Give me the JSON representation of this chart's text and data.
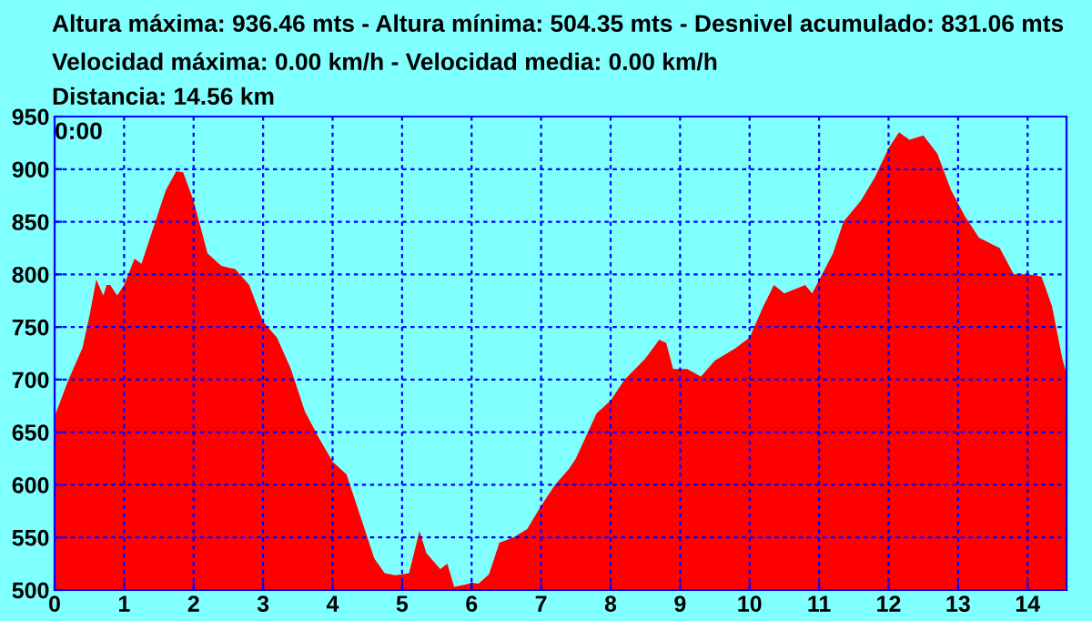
{
  "chart_data": {
    "type": "area",
    "title": "Altura máxima: 936.46 mts - Altura mínima: 504.35 mts - Desnivel acumulado: 831.06 mts",
    "annotations": [
      "Velocidad máxima: 0.00 km/h - Velocidad media: 0.00 km/h",
      "Distancia: 14.56 km",
      "0:00"
    ],
    "x": [
      0,
      0.2,
      0.4,
      0.5,
      0.6,
      0.7,
      0.75,
      0.8,
      0.9,
      1.0,
      1.15,
      1.25,
      1.4,
      1.6,
      1.75,
      1.85,
      2.0,
      2.2,
      2.4,
      2.6,
      2.8,
      3.0,
      3.2,
      3.4,
      3.6,
      3.8,
      4.0,
      4.2,
      4.4,
      4.6,
      4.75,
      4.9,
      5.0,
      5.1,
      5.25,
      5.35,
      5.55,
      5.65,
      5.75,
      5.9,
      6.0,
      6.1,
      6.25,
      6.4,
      6.6,
      6.8,
      7.0,
      7.2,
      7.4,
      7.5,
      7.8,
      8.0,
      8.2,
      8.5,
      8.7,
      8.8,
      8.9,
      9.1,
      9.3,
      9.5,
      9.8,
      10.0,
      10.2,
      10.35,
      10.5,
      10.8,
      10.9,
      11.2,
      11.35,
      11.6,
      11.8,
      12.0,
      12.15,
      12.3,
      12.5,
      12.7,
      12.9,
      13.1,
      13.3,
      13.6,
      13.8,
      14.0,
      14.2,
      14.35,
      14.5,
      14.56
    ],
    "series": [
      {
        "color": "#ff0000",
        "values": [
          665,
          700,
          730,
          760,
          795,
          780,
          790,
          790,
          780,
          790,
          815,
          810,
          840,
          880,
          898,
          897,
          870,
          820,
          808,
          805,
          790,
          755,
          740,
          710,
          670,
          645,
          622,
          610,
          570,
          530,
          516,
          514,
          515,
          516,
          556,
          535,
          520,
          525,
          503,
          505,
          507,
          506,
          515,
          545,
          550,
          558,
          580,
          600,
          615,
          625,
          668,
          680,
          700,
          720,
          738,
          735,
          710,
          710,
          703,
          718,
          730,
          740,
          770,
          790,
          782,
          790,
          782,
          820,
          850,
          870,
          892,
          920,
          935,
          928,
          932,
          915,
          880,
          855,
          835,
          825,
          800,
          800,
          798,
          770,
          720,
          705
        ]
      }
    ],
    "xlim": [
      0,
      14.56
    ],
    "ylim": [
      500,
      950
    ],
    "xticks": [
      0,
      1,
      2,
      3,
      4,
      5,
      6,
      7,
      8,
      9,
      10,
      11,
      12,
      13,
      14
    ],
    "yticks": [
      500,
      550,
      600,
      650,
      700,
      750,
      800,
      850,
      900,
      950
    ],
    "grid": true,
    "line_style": "dashed"
  }
}
